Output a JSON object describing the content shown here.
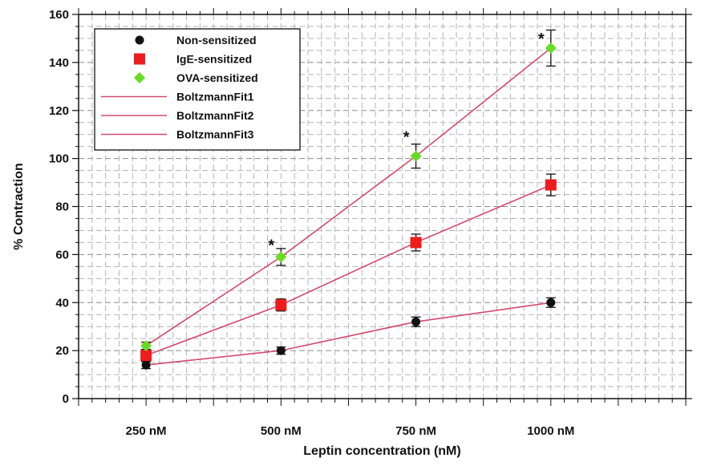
{
  "chart_data": {
    "type": "scatter",
    "xlabel": "Leptin concentration (nM)",
    "ylabel": "% Contraction",
    "x_categories": [
      "250 nM",
      "500 nM",
      "750 nM",
      "1000 nM"
    ],
    "x_values": [
      250,
      500,
      750,
      1000
    ],
    "xlim": [
      125,
      1250
    ],
    "ylim": [
      0,
      160
    ],
    "y_ticks": [
      0,
      20,
      40,
      60,
      80,
      100,
      120,
      140,
      160
    ],
    "grid": true,
    "legend_position": "top-left",
    "series": [
      {
        "name": "Non-sensitized",
        "marker": "circle",
        "color": "#111111",
        "values": [
          14,
          20,
          32,
          40
        ],
        "errors": [
          1.5,
          1.5,
          2,
          2
        ]
      },
      {
        "name": "IgE-sensitized",
        "marker": "square",
        "color": "#ee1c1c",
        "values": [
          18,
          39,
          65,
          89
        ],
        "errors": [
          2.5,
          2.5,
          3.5,
          4.5
        ]
      },
      {
        "name": "OVA-sensitized",
        "marker": "diamond",
        "color": "#66dd22",
        "values": [
          22,
          59,
          101,
          146
        ],
        "errors": [
          1.5,
          3.5,
          5,
          7.5
        ]
      }
    ],
    "fits": [
      {
        "name": "BoltzmannFit1",
        "color": "#d44a6e",
        "values": [
          14,
          20,
          32,
          40
        ]
      },
      {
        "name": "BoltzmannFit2",
        "color": "#d44a6e",
        "values": [
          18,
          39,
          65,
          89
        ]
      },
      {
        "name": "BoltzmannFit3",
        "color": "#d44a6e",
        "values": [
          22,
          59,
          101,
          146
        ]
      }
    ],
    "annotations": [
      {
        "text": "*",
        "x": 500,
        "y": 63
      },
      {
        "text": "*",
        "x": 750,
        "y": 108
      },
      {
        "text": "*",
        "x": 1000,
        "y": 149
      }
    ]
  }
}
